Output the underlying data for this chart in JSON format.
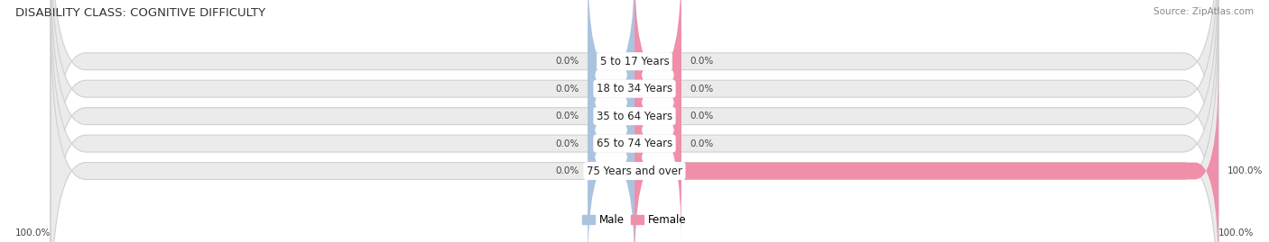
{
  "title": "DISABILITY CLASS: COGNITIVE DIFFICULTY",
  "source": "Source: ZipAtlas.com",
  "categories": [
    "5 to 17 Years",
    "18 to 34 Years",
    "35 to 64 Years",
    "65 to 74 Years",
    "75 Years and over"
  ],
  "male_values": [
    0.0,
    0.0,
    0.0,
    0.0,
    0.0
  ],
  "female_values": [
    0.0,
    0.0,
    0.0,
    0.0,
    100.0
  ],
  "male_color": "#aac4e0",
  "female_color": "#f08faa",
  "bar_bg_color": "#ebebeb",
  "bar_border_color": "#d0d0d0",
  "stub_size": 8.0,
  "x_min": -100,
  "x_max": 100,
  "title_fontsize": 9.5,
  "source_fontsize": 7.5,
  "value_fontsize": 7.5,
  "cat_fontsize": 8.5,
  "legend_fontsize": 8.5,
  "background_color": "#ffffff",
  "bottom_left_label": "100.0%",
  "bottom_right_label": "100.0%"
}
